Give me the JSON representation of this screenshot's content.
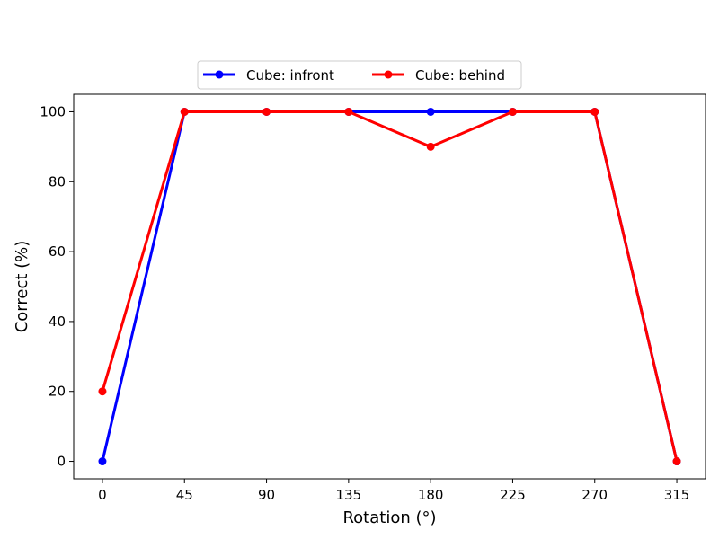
{
  "chart_data": {
    "type": "line",
    "title": "",
    "xlabel": "Rotation (°)",
    "ylabel": "Correct (%)",
    "x": [
      0,
      45,
      90,
      135,
      180,
      225,
      270,
      315
    ],
    "xticks": [
      "0",
      "45",
      "90",
      "135",
      "180",
      "225",
      "270",
      "315"
    ],
    "yticks": [
      "0",
      "20",
      "40",
      "60",
      "80",
      "100"
    ],
    "xlim": [
      -15.75,
      330.75
    ],
    "ylim": [
      -5,
      105
    ],
    "grid": false,
    "legend_position": "top-center",
    "series": [
      {
        "name": "Cube: infront",
        "color": "#0000ff",
        "values": [
          0,
          100,
          100,
          100,
          100,
          100,
          100,
          0
        ]
      },
      {
        "name": "Cube: behind",
        "color": "#ff0000",
        "values": [
          20,
          100,
          100,
          100,
          90,
          100,
          100,
          0
        ]
      }
    ]
  }
}
